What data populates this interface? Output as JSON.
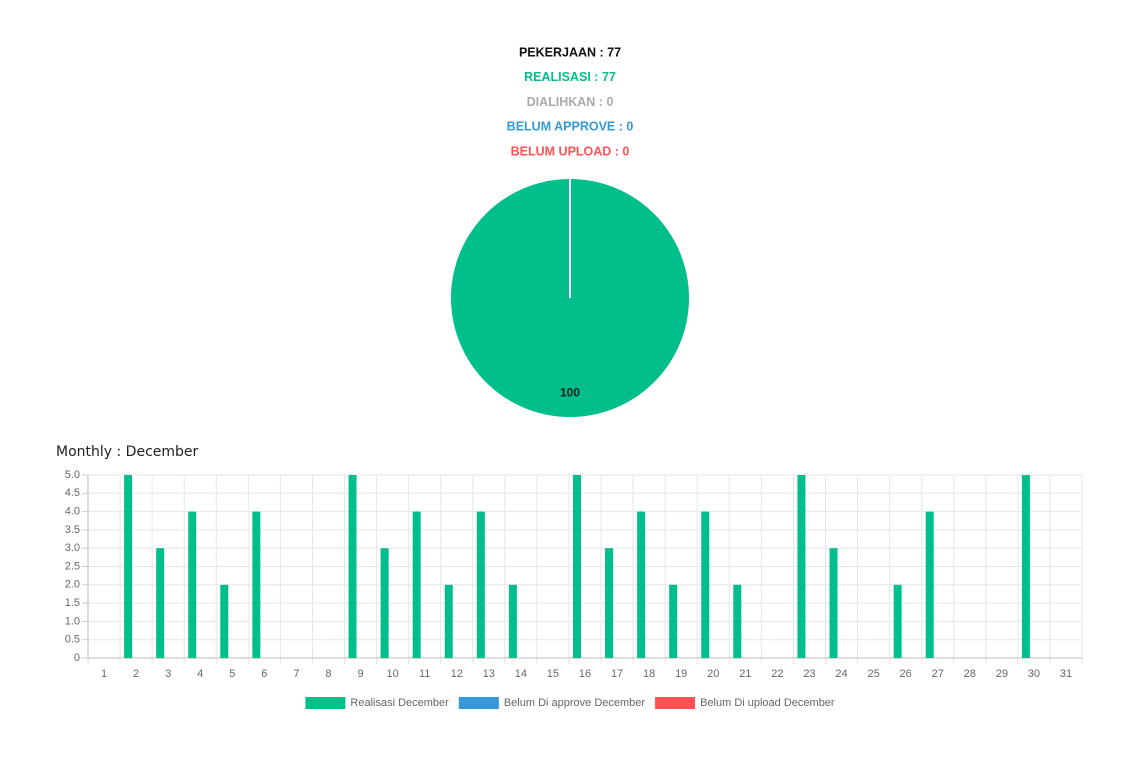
{
  "header": {
    "lines": [
      {
        "text": "PEKERJAAN : 77",
        "color": "#111111"
      },
      {
        "text": "REALISASI : 77",
        "color": "#00bf8a"
      },
      {
        "text": "DIALIHKAN : 0",
        "color": "#aaaaaa"
      },
      {
        "text": "BELUM APPROVE : 0",
        "color": "#3498db"
      },
      {
        "text": "BELUM UPLOAD : 0",
        "color": "#ff5252"
      }
    ]
  },
  "chart_data": [
    {
      "type": "pie",
      "values": [
        100
      ],
      "colors": [
        "#00bf8a"
      ]
    },
    {
      "type": "bar",
      "title": "Monthly : December",
      "categories": [
        "1",
        "2",
        "3",
        "4",
        "5",
        "6",
        "7",
        "8",
        "9",
        "10",
        "11",
        "12",
        "13",
        "14",
        "15",
        "16",
        "17",
        "18",
        "19",
        "20",
        "21",
        "22",
        "23",
        "24",
        "25",
        "26",
        "27",
        "28",
        "29",
        "30",
        "31"
      ],
      "series": [
        {
          "name": "Realisasi December",
          "color": "#00bf8a",
          "values": [
            0,
            5,
            3,
            4,
            2,
            4,
            0,
            0,
            5,
            3,
            4,
            2,
            4,
            2,
            0,
            5,
            3,
            4,
            2,
            4,
            2,
            0,
            5,
            3,
            0,
            2,
            4,
            0,
            0,
            5,
            0
          ]
        },
        {
          "name": "Belum Di approve December",
          "color": "#3498db",
          "values": [
            0,
            0,
            0,
            0,
            0,
            0,
            0,
            0,
            0,
            0,
            0,
            0,
            0,
            0,
            0,
            0,
            0,
            0,
            0,
            0,
            0,
            0,
            0,
            0,
            0,
            0,
            0,
            0,
            0,
            0,
            0
          ]
        },
        {
          "name": "Belum Di upload December",
          "color": "#ff5252",
          "values": [
            0,
            0,
            0,
            0,
            0,
            0,
            0,
            0,
            0,
            0,
            0,
            0,
            0,
            0,
            0,
            0,
            0,
            0,
            0,
            0,
            0,
            0,
            0,
            0,
            0,
            0,
            0,
            0,
            0,
            0,
            0
          ]
        }
      ],
      "ylim": [
        0,
        5
      ],
      "yticks": [
        0,
        0.5,
        {
          "value": 1,
          "label": "1.0"
        },
        1.5,
        {
          "value": 2,
          "label": "2.0"
        },
        2.5,
        {
          "value": 3,
          "label": "3.0"
        },
        3.5,
        {
          "value": 4,
          "label": "4.0"
        },
        4.5,
        {
          "value": 5,
          "label": "5.0"
        }
      ],
      "grid": true
    }
  ]
}
